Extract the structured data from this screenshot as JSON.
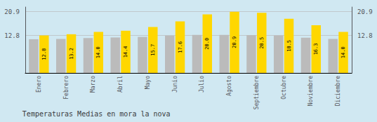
{
  "chart_data": {
    "type": "bar",
    "title": "Temperaturas Medias en mora la nova",
    "categories": [
      "Enero",
      "Febrero",
      "Marzo",
      "Abril",
      "Mayo",
      "Junio",
      "Julio",
      "Agosto",
      "Septiembre",
      "Octubre",
      "Noviembre",
      "Diciembre"
    ],
    "series": [
      {
        "color": "#BBBBBB",
        "values": [
          11.5,
          11.6,
          11.9,
          12.1,
          12.3,
          12.7,
          13.0,
          13.0,
          12.9,
          12.8,
          12.0,
          11.6
        ]
      },
      {
        "color": "#FFD700",
        "values": [
          12.8,
          13.2,
          14.0,
          14.4,
          15.7,
          17.6,
          20.0,
          20.9,
          20.5,
          18.5,
          16.3,
          14.0
        ],
        "data_labels": true,
        "value_labels": [
          "12.8",
          "13.2",
          "14.0",
          "14.4",
          "15.7",
          "17.6",
          "20.0",
          "20.9",
          "20.5",
          "18.5",
          "16.3",
          "14.0"
        ]
      }
    ],
    "ylim": [
      0,
      22.5
    ],
    "yticks": [
      12.8,
      20.9
    ],
    "grid": true
  }
}
